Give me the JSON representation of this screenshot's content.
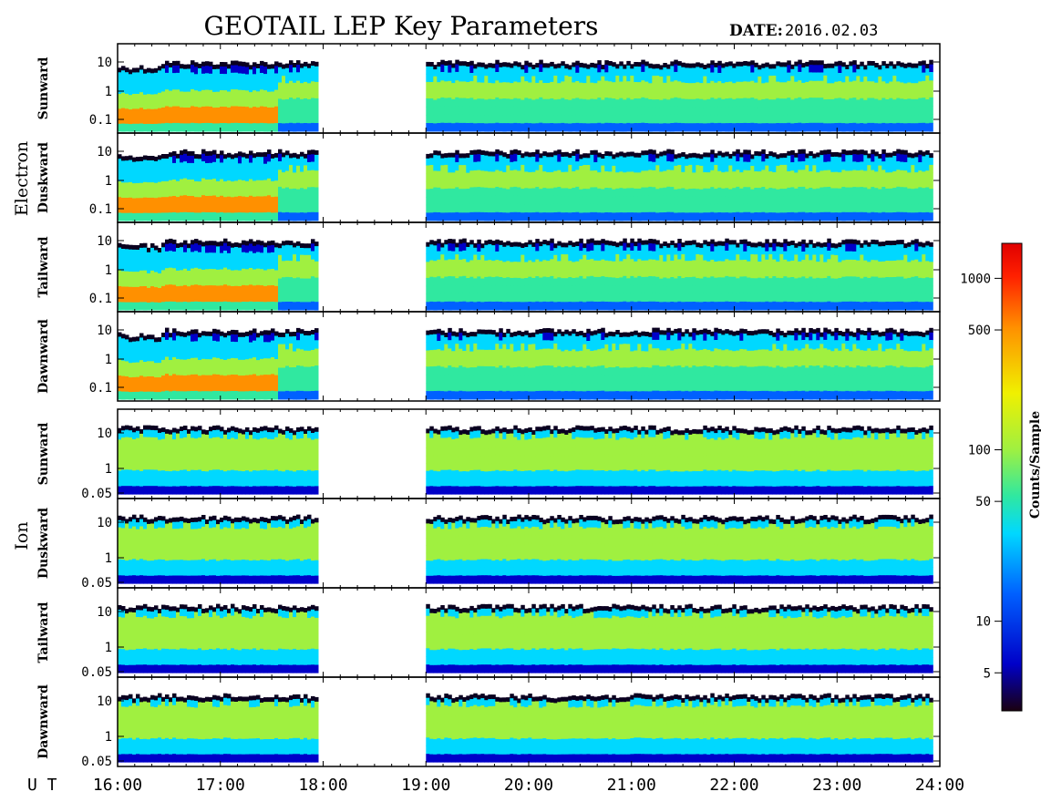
{
  "title": "GEOTAIL LEP Key Parameters",
  "date_label": "DATE:",
  "date_value": "2016.02.03",
  "x_axis_label": "U T",
  "colorbar": {
    "label": "Counts/Sample",
    "scale": "log",
    "range": [
      3,
      1600
    ],
    "ticks": [
      "1000",
      "500",
      "100",
      "50",
      "10",
      "5"
    ],
    "tick_values": [
      1000,
      500,
      100,
      50,
      10,
      5
    ],
    "colors": [
      "#1a0010",
      "#0000c8",
      "#0060ff",
      "#00d8ff",
      "#30e8a0",
      "#a0f040",
      "#f0f000",
      "#ff9000",
      "#ff2000",
      "#e00000"
    ]
  },
  "chart_data": {
    "type": "heatmap",
    "title": "GEOTAIL LEP Key Parameters",
    "x": {
      "unit": "UT",
      "range": [
        "16:00",
        "24:00"
      ],
      "tick_labels": [
        "16:00",
        "17:00",
        "18:00",
        "19:00",
        "20:00",
        "21:00",
        "22:00",
        "23:00",
        "24:00"
      ],
      "data_gaps": [
        [
          "17:57",
          "19:00"
        ]
      ]
    },
    "groups": [
      {
        "name": "Electron",
        "y_scale": "log",
        "y_tick_labels": [
          "10",
          "1",
          "0.1"
        ],
        "panels": [
          {
            "name": "Sunward"
          },
          {
            "name": "Duskward"
          },
          {
            "name": "Tailward"
          },
          {
            "name": "Dawnward"
          }
        ]
      },
      {
        "name": "Ion",
        "y_scale": "log",
        "y_tick_labels": [
          "10",
          "1",
          "0.05"
        ],
        "panels": [
          {
            "name": "Sunward"
          },
          {
            "name": "Duskward"
          },
          {
            "name": "Tailward"
          },
          {
            "name": "Dawnward"
          }
        ]
      }
    ]
  }
}
